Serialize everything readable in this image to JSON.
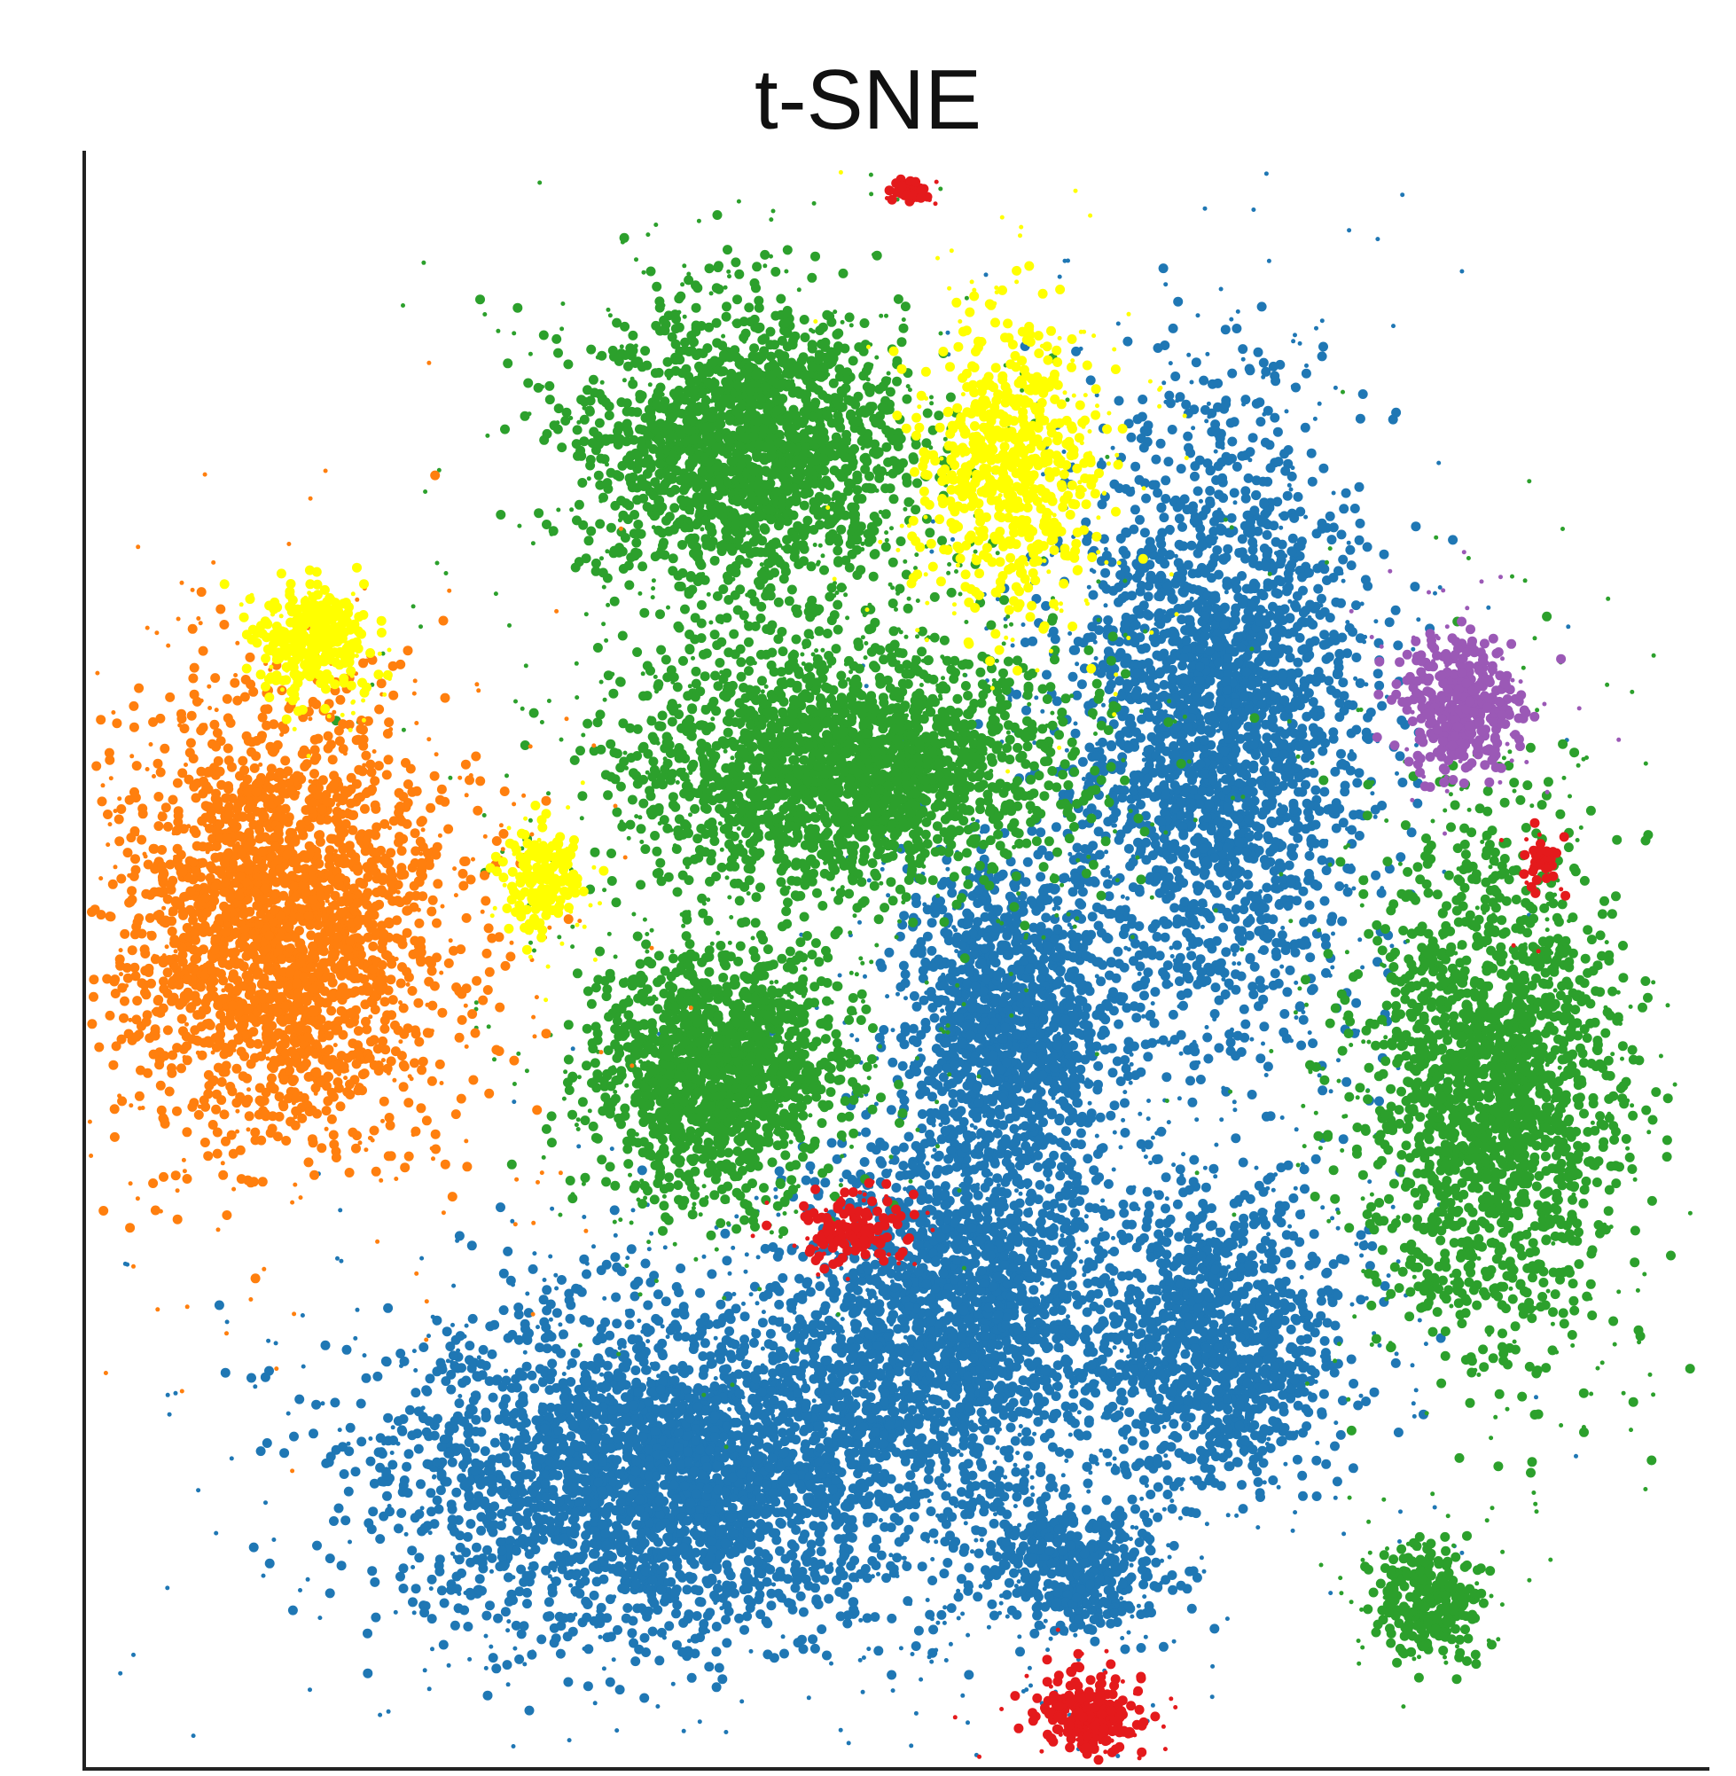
{
  "chart_data": {
    "type": "scatter",
    "title": "t-SNE",
    "xlabel": "",
    "ylabel": "",
    "xlim": [
      -50,
      50
    ],
    "ylim": [
      -50,
      50
    ],
    "axes": "left-and-bottom",
    "ticks": false,
    "grid": false,
    "legend": "none",
    "clusters": [
      {
        "color": "#1f77b4",
        "center": [
          -14,
          -32
        ],
        "spread": [
          15,
          9
        ],
        "points": 3400
      },
      {
        "color": "#1f77b4",
        "center": [
          4,
          -22
        ],
        "spread": [
          9,
          10
        ],
        "points": 1800
      },
      {
        "color": "#1f77b4",
        "center": [
          7,
          -4
        ],
        "spread": [
          6,
          9
        ],
        "points": 1400
      },
      {
        "color": "#1f77b4",
        "center": [
          20,
          15
        ],
        "spread": [
          8,
          17
        ],
        "points": 2600
      },
      {
        "color": "#1f77b4",
        "center": [
          20,
          -24
        ],
        "spread": [
          7,
          8
        ],
        "points": 1200
      },
      {
        "color": "#1f77b4",
        "center": [
          11,
          -38
        ],
        "spread": [
          5,
          4
        ],
        "points": 500
      },
      {
        "color": "#2ca02c",
        "center": [
          -9,
          32
        ],
        "spread": [
          9,
          8
        ],
        "points": 2000
      },
      {
        "color": "#2ca02c",
        "center": [
          -3,
          12
        ],
        "spread": [
          12,
          7
        ],
        "points": 2200
      },
      {
        "color": "#2ca02c",
        "center": [
          -11,
          -7
        ],
        "spread": [
          7,
          7
        ],
        "points": 1500
      },
      {
        "color": "#2ca02c",
        "center": [
          37,
          -8
        ],
        "spread": [
          7,
          14
        ],
        "points": 2000
      },
      {
        "color": "#2ca02c",
        "center": [
          33,
          -40
        ],
        "spread": [
          3,
          3
        ],
        "points": 300
      },
      {
        "color": "#ff7f0e",
        "center": [
          -38,
          2
        ],
        "spread": [
          9,
          12
        ],
        "points": 2600
      },
      {
        "color": "#ffff00",
        "center": [
          7,
          31
        ],
        "spread": [
          5,
          8
        ],
        "points": 700
      },
      {
        "color": "#ffff00",
        "center": [
          -36,
          20
        ],
        "spread": [
          3,
          3
        ],
        "points": 350
      },
      {
        "color": "#ffff00",
        "center": [
          -22,
          5
        ],
        "spread": [
          2,
          3
        ],
        "points": 200
      },
      {
        "color": "#9b59b6",
        "center": [
          35,
          16
        ],
        "spread": [
          3,
          4
        ],
        "points": 400
      },
      {
        "color": "#e41a1c",
        "center": [
          12,
          -47
        ],
        "spread": [
          3,
          2
        ],
        "points": 250
      },
      {
        "color": "#e41a1c",
        "center": [
          -3,
          -17
        ],
        "spread": [
          3,
          2
        ],
        "points": 150
      },
      {
        "color": "#e41a1c",
        "center": [
          1,
          48
        ],
        "spread": [
          1,
          0.5
        ],
        "points": 40
      },
      {
        "color": "#e41a1c",
        "center": [
          40,
          6
        ],
        "spread": [
          1,
          2
        ],
        "points": 40
      }
    ]
  }
}
